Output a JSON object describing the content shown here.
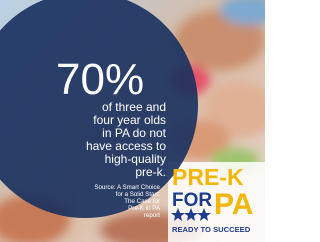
{
  "headline": "70%",
  "body_lines": [
    "of three and",
    "four year olds",
    "in PA do not",
    "have access to",
    "high-quality",
    "pre-k."
  ],
  "source_lines": [
    "Source: A Smart Choice",
    "for a Solid Start:",
    "The Case for",
    "Pre-K in PA",
    "report"
  ],
  "logo": {
    "top": "PRE-K",
    "for": "FOR",
    "pa": "PA",
    "tagline": "READY TO SUCCEED"
  }
}
